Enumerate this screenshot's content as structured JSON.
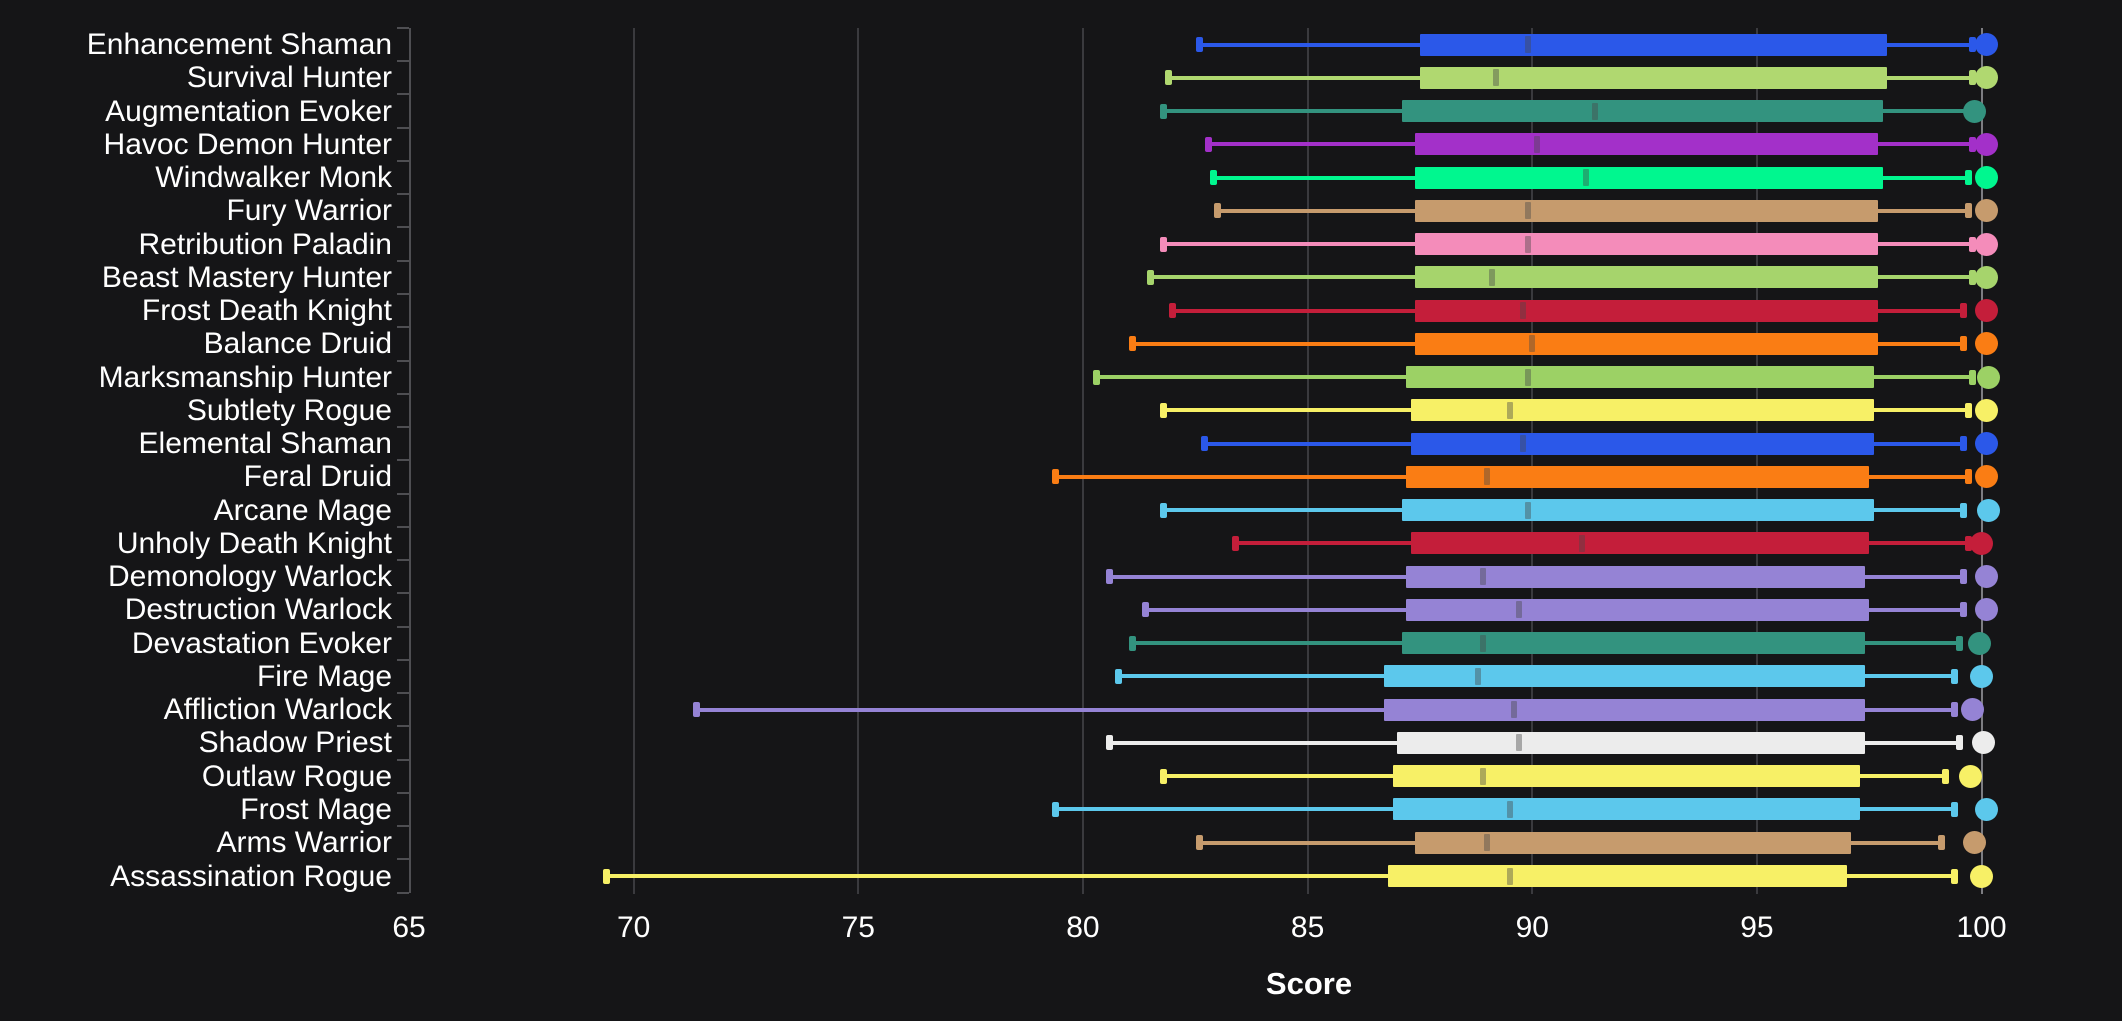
{
  "chart_data": {
    "type": "box",
    "orientation": "horizontal",
    "title": "",
    "xlabel": "Score",
    "ylabel": "",
    "x_ticks": [
      65,
      70,
      75,
      80,
      85,
      90,
      95,
      100
    ],
    "x_range": [
      64.9,
      103.1
    ],
    "grid": true,
    "bright_gridline_at": 100,
    "legend": "none",
    "rows": [
      {
        "label": "Enhancement Shaman",
        "color": "#2b58e9",
        "low": 82.6,
        "q1": 87.5,
        "median": 89.9,
        "q3": 97.9,
        "high": 99.8,
        "dot": 100.1
      },
      {
        "label": "Survival Hunter",
        "color": "#b0d870",
        "low": 81.9,
        "q1": 87.5,
        "median": 89.2,
        "q3": 97.9,
        "high": 99.8,
        "dot": 100.1
      },
      {
        "label": "Augmentation Evoker",
        "color": "#33937f",
        "low": 81.8,
        "q1": 87.1,
        "median": 91.4,
        "q3": 97.8,
        "high": 99.7,
        "dot": 99.85
      },
      {
        "label": "Havoc Demon Hunter",
        "color": "#a330c9",
        "low": 82.8,
        "q1": 87.4,
        "median": 90.1,
        "q3": 97.7,
        "high": 99.8,
        "dot": 100.1
      },
      {
        "label": "Windwalker Monk",
        "color": "#00f78f",
        "low": 82.9,
        "q1": 87.4,
        "median": 91.2,
        "q3": 97.8,
        "high": 99.7,
        "dot": 100.1
      },
      {
        "label": "Fury Warrior",
        "color": "#c69b6d",
        "low": 83.0,
        "q1": 87.4,
        "median": 89.9,
        "q3": 97.7,
        "high": 99.7,
        "dot": 100.1
      },
      {
        "label": "Retribution Paladin",
        "color": "#f48cba",
        "low": 81.8,
        "q1": 87.4,
        "median": 89.9,
        "q3": 97.7,
        "high": 99.8,
        "dot": 100.1
      },
      {
        "label": "Beast Mastery Hunter",
        "color": "#a6d46c",
        "low": 81.5,
        "q1": 87.4,
        "median": 89.1,
        "q3": 97.7,
        "high": 99.8,
        "dot": 100.1
      },
      {
        "label": "Frost Death Knight",
        "color": "#c41e3a",
        "low": 82.0,
        "q1": 87.4,
        "median": 89.8,
        "q3": 97.7,
        "high": 99.6,
        "dot": 100.1
      },
      {
        "label": "Balance Druid",
        "color": "#fa7d14",
        "low": 81.1,
        "q1": 87.4,
        "median": 90.0,
        "q3": 97.7,
        "high": 99.6,
        "dot": 100.1
      },
      {
        "label": "Marksmanship Hunter",
        "color": "#9cd165",
        "low": 80.3,
        "q1": 87.2,
        "median": 89.9,
        "q3": 97.6,
        "high": 99.8,
        "dot": 100.15
      },
      {
        "label": "Subtlety Rogue",
        "color": "#f7f066",
        "low": 81.8,
        "q1": 87.3,
        "median": 89.5,
        "q3": 97.6,
        "high": 99.7,
        "dot": 100.1
      },
      {
        "label": "Elemental Shaman",
        "color": "#2b58e9",
        "low": 82.7,
        "q1": 87.3,
        "median": 89.8,
        "q3": 97.6,
        "high": 99.6,
        "dot": 100.1
      },
      {
        "label": "Feral Druid",
        "color": "#fa7d14",
        "low": 79.4,
        "q1": 87.2,
        "median": 89.0,
        "q3": 97.5,
        "high": 99.7,
        "dot": 100.1
      },
      {
        "label": "Arcane Mage",
        "color": "#5cc8ec",
        "low": 81.8,
        "q1": 87.1,
        "median": 89.9,
        "q3": 97.6,
        "high": 99.6,
        "dot": 100.15
      },
      {
        "label": "Unholy Death Knight",
        "color": "#c41e3a",
        "low": 83.4,
        "q1": 87.3,
        "median": 91.1,
        "q3": 97.5,
        "high": 99.7,
        "dot": 100.0
      },
      {
        "label": "Demonology Warlock",
        "color": "#9583d5",
        "low": 80.6,
        "q1": 87.2,
        "median": 88.9,
        "q3": 97.4,
        "high": 99.6,
        "dot": 100.1
      },
      {
        "label": "Destruction Warlock",
        "color": "#9583d5",
        "low": 81.4,
        "q1": 87.2,
        "median": 89.7,
        "q3": 97.5,
        "high": 99.6,
        "dot": 100.1
      },
      {
        "label": "Devastation Evoker",
        "color": "#33937f",
        "low": 81.1,
        "q1": 87.1,
        "median": 88.9,
        "q3": 97.4,
        "high": 99.5,
        "dot": 99.95
      },
      {
        "label": "Fire Mage",
        "color": "#5cc8ec",
        "low": 80.8,
        "q1": 86.7,
        "median": 88.8,
        "q3": 97.4,
        "high": 99.4,
        "dot": 100.0
      },
      {
        "label": "Affliction Warlock",
        "color": "#9583d5",
        "low": 71.4,
        "q1": 86.7,
        "median": 89.6,
        "q3": 97.4,
        "high": 99.4,
        "dot": 99.8
      },
      {
        "label": "Shadow Priest",
        "color": "#ececec",
        "low": 80.6,
        "q1": 87.0,
        "median": 89.7,
        "q3": 97.4,
        "high": 99.5,
        "dot": 100.05
      },
      {
        "label": "Outlaw Rogue",
        "color": "#f7f066",
        "low": 81.8,
        "q1": 86.9,
        "median": 88.9,
        "q3": 97.3,
        "high": 99.2,
        "dot": 99.75
      },
      {
        "label": "Frost Mage",
        "color": "#5cc8ec",
        "low": 79.4,
        "q1": 86.9,
        "median": 89.5,
        "q3": 97.3,
        "high": 99.4,
        "dot": 100.1
      },
      {
        "label": "Arms Warrior",
        "color": "#c69b6d",
        "low": 82.6,
        "q1": 87.4,
        "median": 89.0,
        "q3": 97.1,
        "high": 99.1,
        "dot": 99.85
      },
      {
        "label": "Assassination Rogue",
        "color": "#f7f066",
        "low": 69.4,
        "q1": 86.8,
        "median": 89.5,
        "q3": 97.0,
        "high": 99.4,
        "dot": 100.0
      }
    ]
  },
  "colors": {
    "background": "#151517",
    "gridline": "#3a3a3e",
    "gridline_bright": "#7d7d82",
    "axis_line": "#4e4e52",
    "text": "#ffffff"
  }
}
